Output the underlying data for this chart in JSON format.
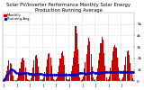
{
  "title": "Solar PV/Inverter Performance Monthly Solar Energy Production Running Average",
  "bar_color": "#cc0000",
  "avg_color": "#0000cc",
  "background_color": "#ffffff",
  "plot_bg_color": "#ffffff",
  "grid_color": "#bbbbbb",
  "ylim": [
    0,
    6000
  ],
  "yticks": [
    0,
    1000,
    2000,
    3000,
    4000,
    5000
  ],
  "ytick_labels": [
    "0",
    "1k",
    "2k",
    "3k",
    "4k",
    "5k"
  ],
  "title_fontsize": 3.8,
  "tick_fontsize": 3.0,
  "bar_values": [
    120,
    250,
    600,
    900,
    1400,
    1800,
    1600,
    1500,
    1000,
    500,
    150,
    80,
    130,
    280,
    700,
    1100,
    1700,
    2000,
    2100,
    1800,
    1200,
    600,
    180,
    90,
    140,
    300,
    750,
    1200,
    1800,
    2200,
    2300,
    2000,
    1300,
    650,
    200,
    100,
    160,
    320,
    800,
    1300,
    1900,
    2400,
    2500,
    2100,
    1400,
    700,
    220,
    110,
    170,
    340,
    850,
    1350,
    2000,
    2500,
    2600,
    2200,
    1450,
    720,
    230,
    115,
    180,
    360,
    900,
    1400,
    2100,
    2600,
    4800,
    4200,
    2800,
    1500,
    350,
    150,
    200,
    400,
    1100,
    1700,
    2400,
    3200,
    3800,
    3500,
    2400,
    1300,
    320,
    140,
    210,
    420,
    1150,
    1800,
    2500,
    3300,
    3900,
    3600,
    2500,
    1350,
    330,
    145,
    220,
    440,
    1200,
    1850,
    2600,
    3000,
    3200,
    2900,
    2100,
    1200,
    300,
    130,
    190,
    380,
    950,
    1450,
    2150,
    2650,
    2700,
    2300,
    1600,
    850,
    240,
    120
  ],
  "avg_values": [
    120,
    185,
    323,
    468,
    654,
    845,
    953,
    1021,
    1021,
    969,
    889,
    808,
    750,
    703,
    673,
    667,
    680,
    703,
    726,
    740,
    741,
    733,
    714,
    691,
    665,
    641,
    624,
    614,
    614,
    623,
    638,
    650,
    655,
    653,
    643,
    627,
    609,
    593,
    580,
    572,
    571,
    578,
    591,
    604,
    613,
    615,
    610,
    601,
    590,
    578,
    567,
    559,
    557,
    561,
    571,
    582,
    591,
    594,
    591,
    584,
    575,
    565,
    556,
    549,
    548,
    554,
    602,
    653,
    698,
    726,
    734,
    729,
    719,
    708,
    701,
    697,
    700,
    714,
    737,
    761,
    779,
    788,
    786,
    778,
    766,
    755,
    746,
    741,
    743,
    757,
    780,
    805,
    823,
    833,
    831,
    822,
    810,
    798,
    789,
    784,
    786,
    798,
    819,
    840,
    854,
    858,
    851,
    840,
    826,
    812,
    800,
    792,
    791,
    800,
    817,
    832,
    843,
    846,
    840,
    830
  ],
  "n_bars": 120,
  "xtick_step": 12,
  "xtick_labels": [
    "J",
    "J",
    "J",
    "J",
    "J",
    "J",
    "J",
    "J",
    "J",
    "J"
  ]
}
